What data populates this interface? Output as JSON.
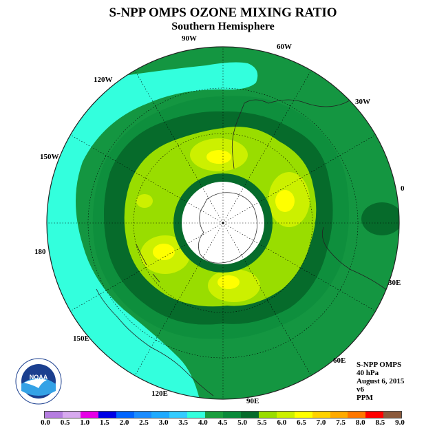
{
  "title": "S-NPP OMPS OZONE MIXING RATIO",
  "subtitle": "Southern Hemisphere",
  "lon_labels": {
    "w90": "90W",
    "w60": "60W",
    "w30": "30W",
    "e0": "0",
    "e30": "30E",
    "e60": "60E",
    "e90": "90E",
    "e120": "120E",
    "e150": "150E",
    "e180": "180",
    "w150": "150W",
    "w120": "120W"
  },
  "info": {
    "instrument": "S-NPP OMPS",
    "level": "40 hPa",
    "date": "August 6, 2015",
    "version": "v6",
    "units": "PPM"
  },
  "logo": {
    "text": "NOAA",
    "icon": "noaa-logo"
  },
  "colorbar": {
    "ticks": [
      "0.0",
      "0.5",
      "1.0",
      "1.5",
      "2.0",
      "2.5",
      "3.0",
      "3.5",
      "4.0",
      "4.5",
      "5.0",
      "5.5",
      "6.0",
      "6.5",
      "7.0",
      "7.5",
      "8.0",
      "8.5",
      "9.0"
    ],
    "colors": [
      "#b57de0",
      "#d7a9ef",
      "#e600e6",
      "#0000e6",
      "#0064ff",
      "#1a8cff",
      "#1eaaff",
      "#33ccff",
      "#33ffdd",
      "#1a9e3e",
      "#0a8a3a",
      "#066b2b",
      "#99dd00",
      "#ccf000",
      "#ffff00",
      "#ffd200",
      "#ffaa00",
      "#ff7700",
      "#ff0000",
      "#8b5a3c"
    ]
  },
  "map_colors": {
    "cyan": "#33ffdd",
    "green_4_5": "#149641",
    "green_5_0": "#0a7a35",
    "dark_green": "#066b2b",
    "lime_5_5": "#99dd00",
    "yellowgreen_6_0": "#ccf000",
    "yellow_6_5": "#ffff00",
    "polar_night": "#ffffff"
  }
}
